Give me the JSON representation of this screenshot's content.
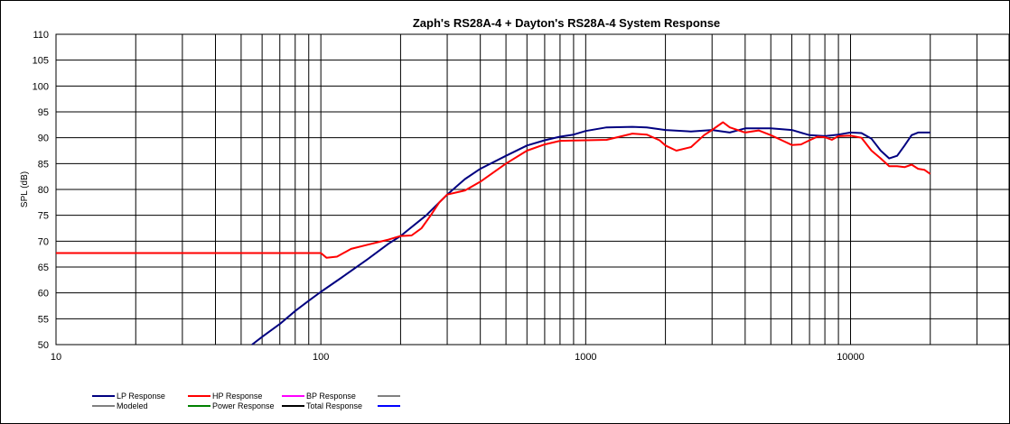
{
  "chart_data": {
    "type": "line",
    "title": "Zaph's RS28A-4 + Dayton's RS28A-4     System Response",
    "xlabel": "",
    "ylabel": "SPL (dB)",
    "x_scale": "log",
    "xlim": [
      10,
      40000
    ],
    "ylim": [
      50,
      110
    ],
    "grid": true,
    "x_tick_labels": [
      10,
      100,
      1000,
      10000
    ],
    "y_ticks": [
      50,
      55,
      60,
      65,
      70,
      75,
      80,
      85,
      90,
      95,
      100,
      105,
      110
    ],
    "legend_position": "bottom",
    "legend": [
      {
        "name": "LP Response",
        "color": "#000080"
      },
      {
        "name": "HP Response",
        "color": "#ff0000"
      },
      {
        "name": "BP Response",
        "color": "#ff00ff"
      },
      {
        "name": "",
        "color": "#808080"
      },
      {
        "name": "Modeled",
        "color": "#808080"
      },
      {
        "name": "Power Response",
        "color": "#008000"
      },
      {
        "name": "Total Response",
        "color": "#000000"
      },
      {
        "name": "",
        "color": "#0000ff"
      }
    ],
    "series": [
      {
        "name": "LP Response",
        "color": "#000080",
        "points": [
          [
            55,
            50
          ],
          [
            60,
            51.5
          ],
          [
            70,
            54
          ],
          [
            80,
            56.5
          ],
          [
            90,
            58.5
          ],
          [
            100,
            60.2
          ],
          [
            120,
            63
          ],
          [
            150,
            66.5
          ],
          [
            180,
            69.5
          ],
          [
            200,
            71
          ],
          [
            250,
            75
          ],
          [
            300,
            79
          ],
          [
            350,
            82
          ],
          [
            400,
            84
          ],
          [
            500,
            86.5
          ],
          [
            600,
            88.5
          ],
          [
            700,
            89.5
          ],
          [
            800,
            90.2
          ],
          [
            900,
            90.6
          ],
          [
            1000,
            91.3
          ],
          [
            1200,
            92
          ],
          [
            1500,
            92.1
          ],
          [
            1700,
            92
          ],
          [
            2000,
            91.5
          ],
          [
            2500,
            91.2
          ],
          [
            3000,
            91.5
          ],
          [
            3500,
            91
          ],
          [
            4000,
            91.8
          ],
          [
            5000,
            91.8
          ],
          [
            6000,
            91.5
          ],
          [
            7000,
            90.5
          ],
          [
            8000,
            90.3
          ],
          [
            9000,
            90.6
          ],
          [
            10000,
            91
          ],
          [
            11000,
            90.9
          ],
          [
            12000,
            89.8
          ],
          [
            13000,
            87.5
          ],
          [
            14000,
            86
          ],
          [
            15000,
            86.5
          ],
          [
            16000,
            88.5
          ],
          [
            17000,
            90.5
          ],
          [
            18000,
            91
          ],
          [
            20000,
            91
          ]
        ]
      },
      {
        "name": "HP Response",
        "color": "#ff0000",
        "points": [
          [
            10,
            67.7
          ],
          [
            50,
            67.7
          ],
          [
            100,
            67.7
          ],
          [
            105,
            66.8
          ],
          [
            115,
            67
          ],
          [
            130,
            68.5
          ],
          [
            150,
            69.3
          ],
          [
            180,
            70.3
          ],
          [
            200,
            71
          ],
          [
            220,
            71.1
          ],
          [
            240,
            72.5
          ],
          [
            260,
            75
          ],
          [
            280,
            77.5
          ],
          [
            300,
            79
          ],
          [
            350,
            79.8
          ],
          [
            400,
            81.5
          ],
          [
            500,
            85
          ],
          [
            600,
            87.5
          ],
          [
            700,
            88.7
          ],
          [
            800,
            89.4
          ],
          [
            1000,
            89.5
          ],
          [
            1200,
            89.6
          ],
          [
            1500,
            90.8
          ],
          [
            1700,
            90.6
          ],
          [
            1900,
            89.5
          ],
          [
            2000,
            88.5
          ],
          [
            2200,
            87.5
          ],
          [
            2500,
            88.2
          ],
          [
            2800,
            90.5
          ],
          [
            3000,
            91.5
          ],
          [
            3300,
            93
          ],
          [
            3500,
            92
          ],
          [
            4000,
            91
          ],
          [
            4500,
            91.4
          ],
          [
            5000,
            90.5
          ],
          [
            5500,
            89.5
          ],
          [
            6000,
            88.6
          ],
          [
            6500,
            88.7
          ],
          [
            7000,
            89.5
          ],
          [
            7500,
            90.2
          ],
          [
            8000,
            90.1
          ],
          [
            8500,
            89.6
          ],
          [
            9000,
            90.3
          ],
          [
            10000,
            90.4
          ],
          [
            11000,
            90
          ],
          [
            12000,
            87.5
          ],
          [
            13000,
            86
          ],
          [
            14000,
            84.5
          ],
          [
            15000,
            84.5
          ],
          [
            16000,
            84.3
          ],
          [
            17000,
            84.8
          ],
          [
            18000,
            84
          ],
          [
            19000,
            83.8
          ],
          [
            20000,
            83
          ]
        ]
      }
    ]
  }
}
